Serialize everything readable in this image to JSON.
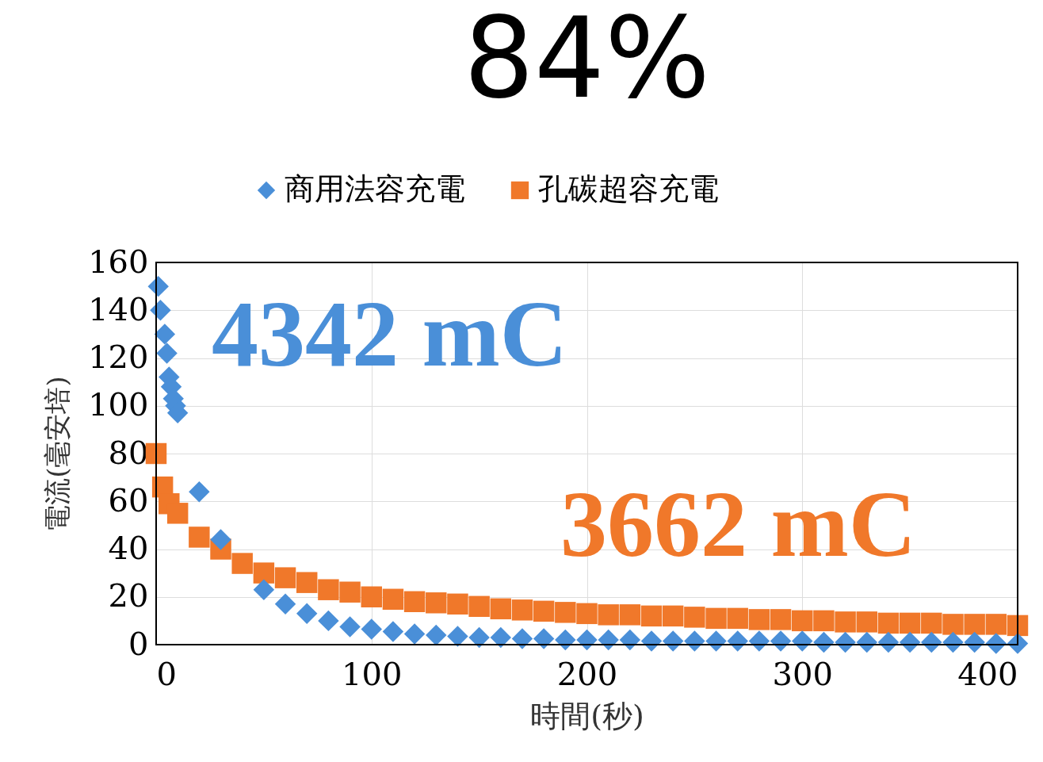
{
  "chart_data": {
    "type": "scatter",
    "title": "84%",
    "xlabel": "時間(秒)",
    "ylabel": "電流(毫安培)",
    "xlim": [
      0,
      400
    ],
    "xticks": [
      0,
      100,
      200,
      300,
      400
    ],
    "ylim": [
      0,
      160
    ],
    "yticks": [
      0,
      20,
      40,
      60,
      80,
      100,
      120,
      140,
      160
    ],
    "grid": true,
    "legend": "top",
    "annotations": [
      "4342 mC",
      "3662 mC"
    ],
    "series": [
      {
        "name": "商用法容充電",
        "color": "#4a8fd8",
        "marker": "diamond",
        "x": [
          1,
          2,
          4,
          5,
          6,
          7,
          8,
          9,
          10,
          20,
          30,
          50,
          60,
          70,
          80,
          90,
          100,
          110,
          120,
          130,
          140,
          150,
          160,
          170,
          180,
          190,
          200,
          210,
          220,
          230,
          240,
          250,
          260,
          270,
          280,
          290,
          300,
          310,
          320,
          330,
          340,
          350,
          360,
          370,
          380,
          390,
          400
        ],
        "values": [
          150,
          140,
          130,
          122,
          112,
          108,
          103,
          100,
          97,
          64,
          44,
          23,
          17,
          13,
          10,
          7.5,
          6.5,
          5.5,
          4.5,
          4,
          3.5,
          3,
          3,
          2.5,
          2.5,
          2,
          2,
          2,
          2,
          1.5,
          1.5,
          1.5,
          1.5,
          1.5,
          1.5,
          1.5,
          1.5,
          1,
          1,
          1,
          1,
          1,
          1,
          1,
          1,
          0.5,
          0.5
        ]
      },
      {
        "name": "孔碳超容充電",
        "color": "#f0782a",
        "marker": "square",
        "x": [
          0,
          3,
          6,
          10,
          20,
          30,
          40,
          50,
          60,
          70,
          80,
          90,
          100,
          110,
          120,
          130,
          140,
          150,
          160,
          170,
          180,
          190,
          200,
          210,
          220,
          230,
          240,
          250,
          260,
          270,
          280,
          290,
          300,
          310,
          320,
          330,
          340,
          350,
          360,
          370,
          380,
          390,
          400
        ],
        "values": [
          80,
          66,
          59,
          55,
          45,
          40,
          34,
          30,
          28,
          26,
          23,
          22,
          20,
          19,
          18,
          17.5,
          17,
          16,
          15,
          14.5,
          14,
          13.5,
          13,
          12.5,
          12.5,
          12,
          12,
          11.5,
          11,
          11,
          10.5,
          10.5,
          10,
          10,
          9.5,
          9.5,
          9,
          9,
          9,
          8.5,
          8.5,
          8.5,
          8
        ]
      }
    ]
  }
}
